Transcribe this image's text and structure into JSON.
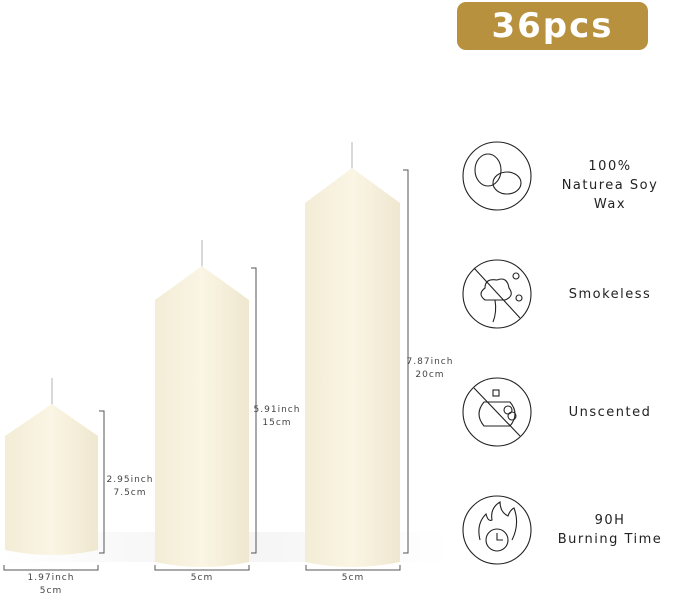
{
  "badge": {
    "label": "36pcs",
    "color": "#b8913f"
  },
  "candles": [
    {
      "height": "2.95inch",
      "height_cm": "7.5cm",
      "width": "1.97inch",
      "width_cm": "5cm"
    },
    {
      "height": "5.91inch",
      "height_cm": "15cm",
      "width_cm": "5cm"
    },
    {
      "height": "7.87inch",
      "height_cm": "20cm",
      "width_cm": "5cm"
    }
  ],
  "features": [
    {
      "icon": "soybean-icon",
      "line1": "100%",
      "line2": "Naturea Soy Wax"
    },
    {
      "icon": "no-smoke-icon",
      "line1": "Smokeless"
    },
    {
      "icon": "no-scent-icon",
      "line1": "Unscented"
    },
    {
      "icon": "flame-clock-icon",
      "line1": "90H",
      "line2": "Burning Time"
    }
  ],
  "colors": {
    "candle": "#f6f0dc",
    "line": "#333333"
  }
}
